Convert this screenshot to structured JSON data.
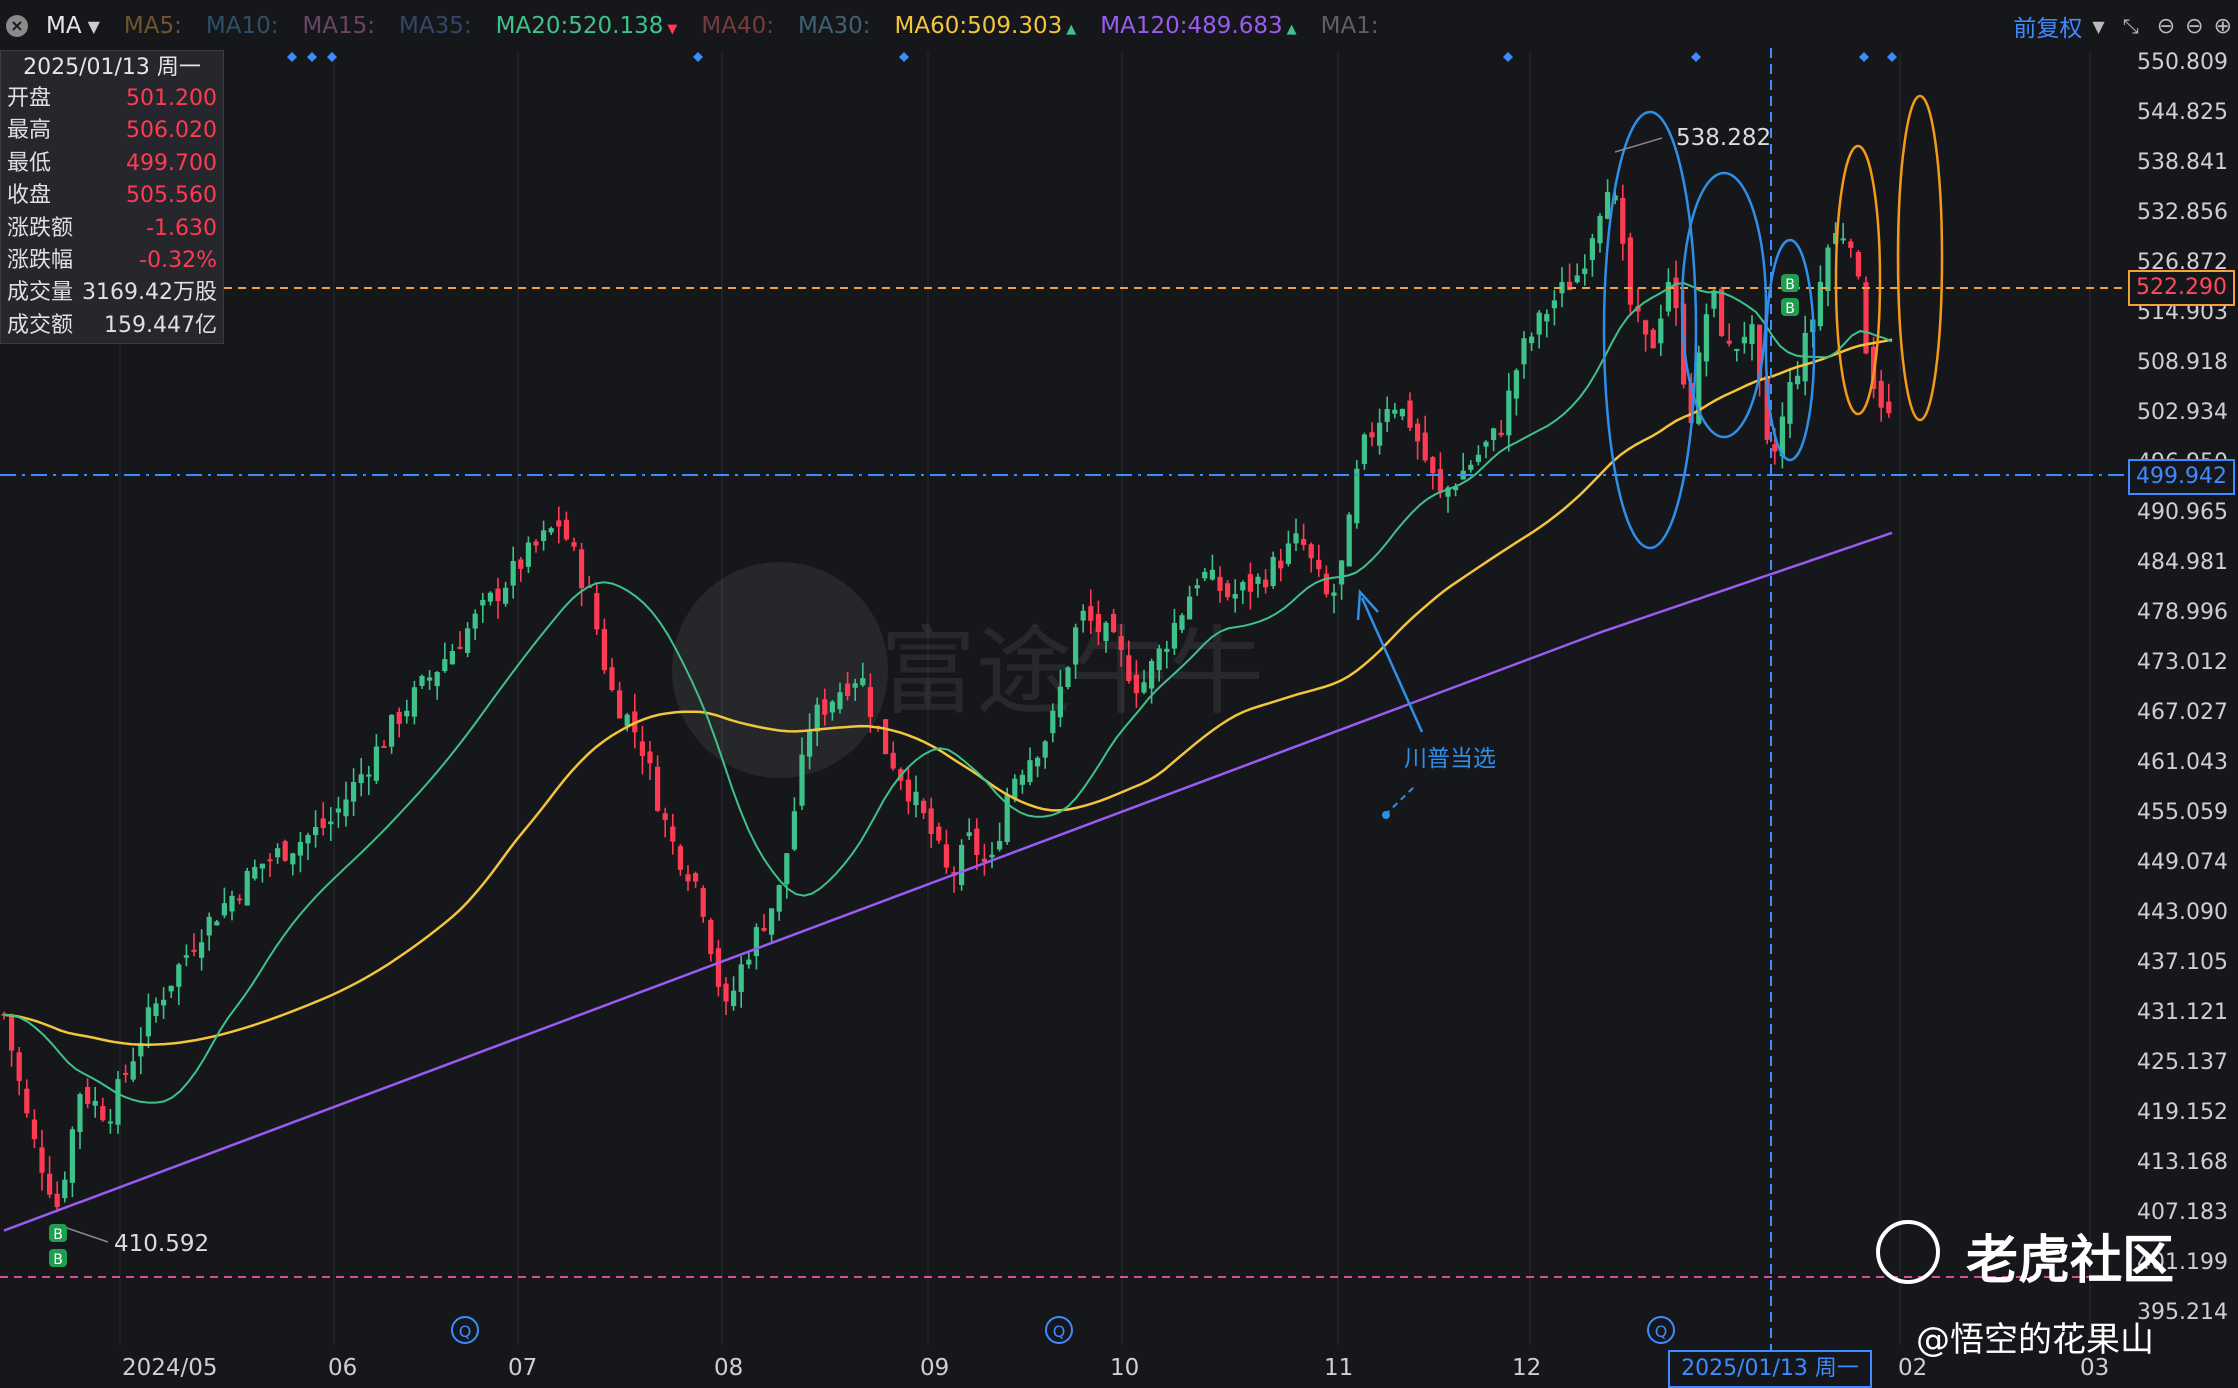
{
  "toolbar": {
    "indicator": "MA",
    "ma_items": [
      {
        "text": "MA5:",
        "color": "#b8863b",
        "dim": true
      },
      {
        "text": "MA10:",
        "color": "#3f7fa8",
        "dim": true
      },
      {
        "text": "MA15:",
        "color": "#b06aa0",
        "dim": true
      },
      {
        "text": "MA35:",
        "color": "#4a6fa3",
        "dim": true
      },
      {
        "text": "MA20:520.138",
        "color": "#3ec28a",
        "dim": false,
        "arrow": "down"
      },
      {
        "text": "MA40:",
        "color": "#c25a5a",
        "dim": true
      },
      {
        "text": "MA30:",
        "color": "#5f9fbd",
        "dim": true
      },
      {
        "text": "MA60:509.303",
        "color": "#f3c53b",
        "dim": false,
        "arrow": "up"
      },
      {
        "text": "MA120:489.683",
        "color": "#9a5cf0",
        "dim": false,
        "arrow": "up"
      },
      {
        "text": "MA1:",
        "color": "#9a9a9a",
        "dim": true
      }
    ],
    "adjust_label": "前复权"
  },
  "info": {
    "date": "2025/01/13 周一",
    "rows": [
      {
        "label": "开盘",
        "value": "501.200",
        "red": true
      },
      {
        "label": "最高",
        "value": "506.020",
        "red": true
      },
      {
        "label": "最低",
        "value": "499.700",
        "red": true
      },
      {
        "label": "收盘",
        "value": "505.560",
        "red": true
      },
      {
        "label": "涨跌额",
        "value": "-1.630",
        "red": true
      },
      {
        "label": "涨跌幅",
        "value": "-0.32%",
        "red": true
      },
      {
        "label": "成交量",
        "value": "3169.42万股",
        "red": false
      },
      {
        "label": "成交额",
        "value": "159.447亿",
        "red": false
      }
    ]
  },
  "y_axis": [
    "550.809",
    "544.825",
    "538.841",
    "532.856",
    "526.872",
    "514.903",
    "508.918",
    "502.934",
    "496.950",
    "490.965",
    "484.981",
    "478.996",
    "473.012",
    "467.027",
    "461.043",
    "455.059",
    "449.074",
    "443.090",
    "437.105",
    "431.121",
    "425.137",
    "419.152",
    "413.168",
    "407.183",
    "401.199",
    "395.214"
  ],
  "x_axis": [
    "2024/05",
    "06",
    "07",
    "08",
    "09",
    "10",
    "11",
    "12",
    "02",
    "03"
  ],
  "crosshair_date": "2025/01/13 周一",
  "price_tags": {
    "orange": "522.290",
    "blue": "499.942"
  },
  "annotations": {
    "high": "538.282",
    "low": "410.592",
    "note": "川普当选",
    "buy_marker": "B",
    "event_marker": "Q"
  },
  "watermark": {
    "brand": "富途牛牛",
    "community": "老虎社区",
    "author": "@悟空的花果山"
  },
  "chart_data": {
    "type": "candlestick",
    "y_range": [
      395.214,
      550.809
    ],
    "series": [
      {
        "name": "MA20",
        "value": 520.138
      },
      {
        "name": "MA60",
        "value": 509.303
      },
      {
        "name": "MA120",
        "value": 489.683
      }
    ],
    "levels": [
      522.29,
      499.942
    ],
    "annotated_high": 538.282,
    "annotated_low": 410.592
  }
}
